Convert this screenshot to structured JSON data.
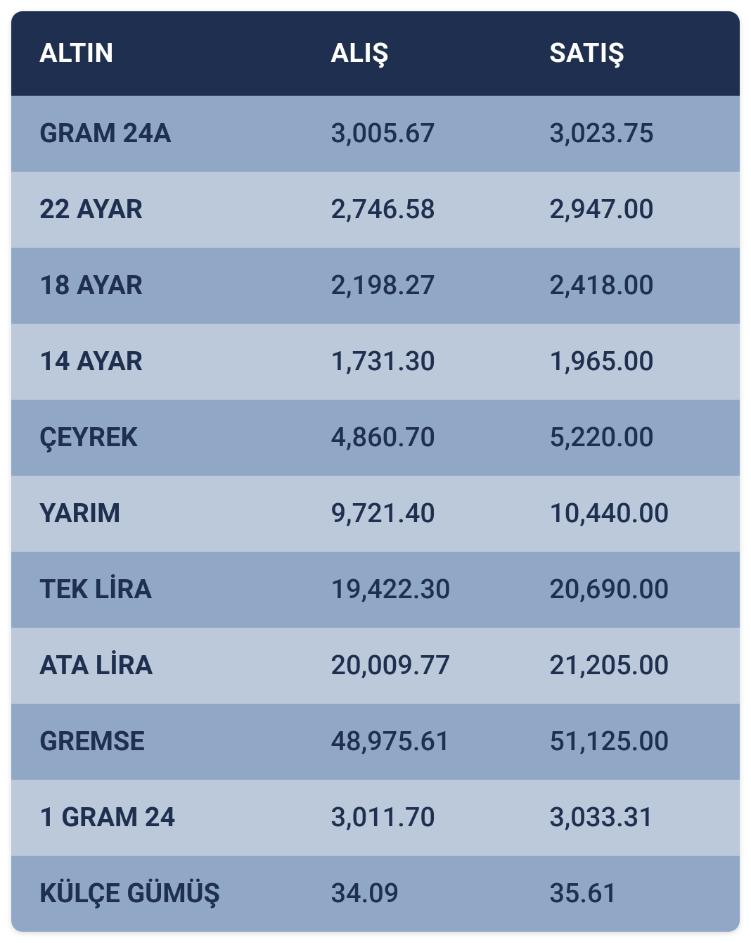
{
  "table": {
    "type": "table",
    "columns": [
      "ALTIN",
      "ALIŞ",
      "SATIŞ"
    ],
    "rows": [
      [
        "GRAM 24A",
        "3,005.67",
        "3,023.75"
      ],
      [
        "22 AYAR",
        "2,746.58",
        "2,947.00"
      ],
      [
        "18 AYAR",
        "2,198.27",
        "2,418.00"
      ],
      [
        "14 AYAR",
        "1,731.30",
        "1,965.00"
      ],
      [
        "ÇEYREK",
        "4,860.70",
        "5,220.00"
      ],
      [
        "YARIM",
        "9,721.40",
        "10,440.00"
      ],
      [
        "TEK LİRA",
        "19,422.30",
        "20,690.00"
      ],
      [
        "ATA LİRA",
        "20,009.77",
        "21,205.00"
      ],
      [
        "GREMSE",
        "48,975.61",
        "51,125.00"
      ],
      [
        "1 GRAM 24",
        "3,011.70",
        "3,033.31"
      ],
      [
        "KÜLÇE GÜMÜŞ",
        "34.09",
        "35.61"
      ]
    ],
    "header_bg_color": "#1e2f4f",
    "header_text_color": "#ffffff",
    "row_odd_bg_color": "#90a8c5",
    "row_even_bg_color": "#bcc9da",
    "cell_text_color": "#1e2f4f",
    "header_fontsize": 38,
    "cell_fontsize": 38,
    "border_radius": 16,
    "column_widths": [
      "40%",
      "30%",
      "30%"
    ],
    "name_column_weight": 700,
    "value_column_weight": 500
  }
}
